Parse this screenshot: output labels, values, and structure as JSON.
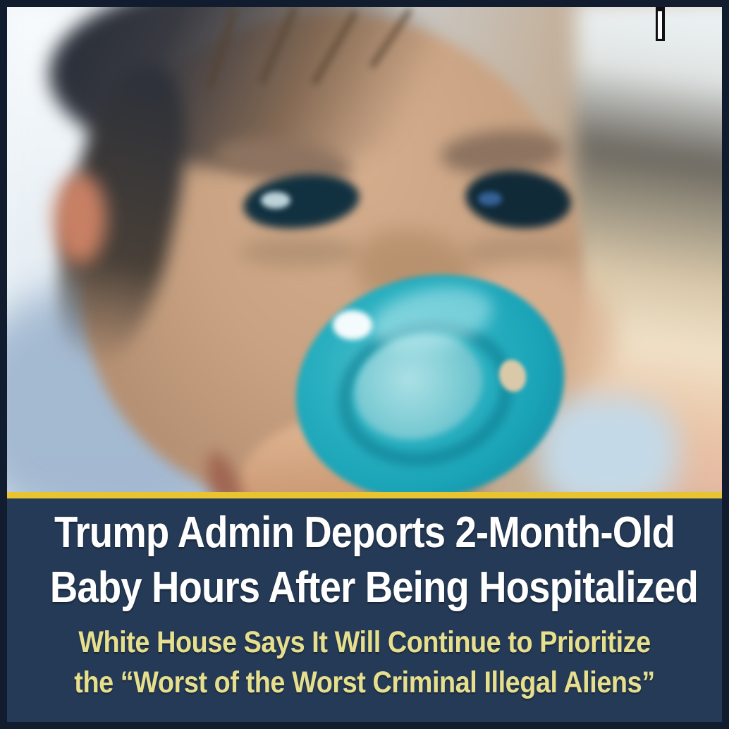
{
  "graphic": {
    "alt": "Blurry close-up photo of a baby with a teal pacifier held to its mouth by an adult's thumb"
  },
  "logo": {
    "icon": "bar-chart-icon"
  },
  "banner": {
    "headline_line1": "Trump Admin Deports 2-Month-Old",
    "headline_line2": "Baby Hours After Being Hospitalized",
    "subhead_line1": "White House Says It Will Continue to Prioritize",
    "subhead_line2": "the “Worst of the Worst Criminal Illegal Aliens”"
  },
  "colors": {
    "frame_navy": "#111d2e",
    "banner_navy": "#253a56",
    "divider_gold": "#e9c431",
    "headline_white": "#ffffff",
    "subhead_yellow": "#e6df8e",
    "pacifier_teal": "#1ba4b8",
    "logo_black": "#101014"
  }
}
